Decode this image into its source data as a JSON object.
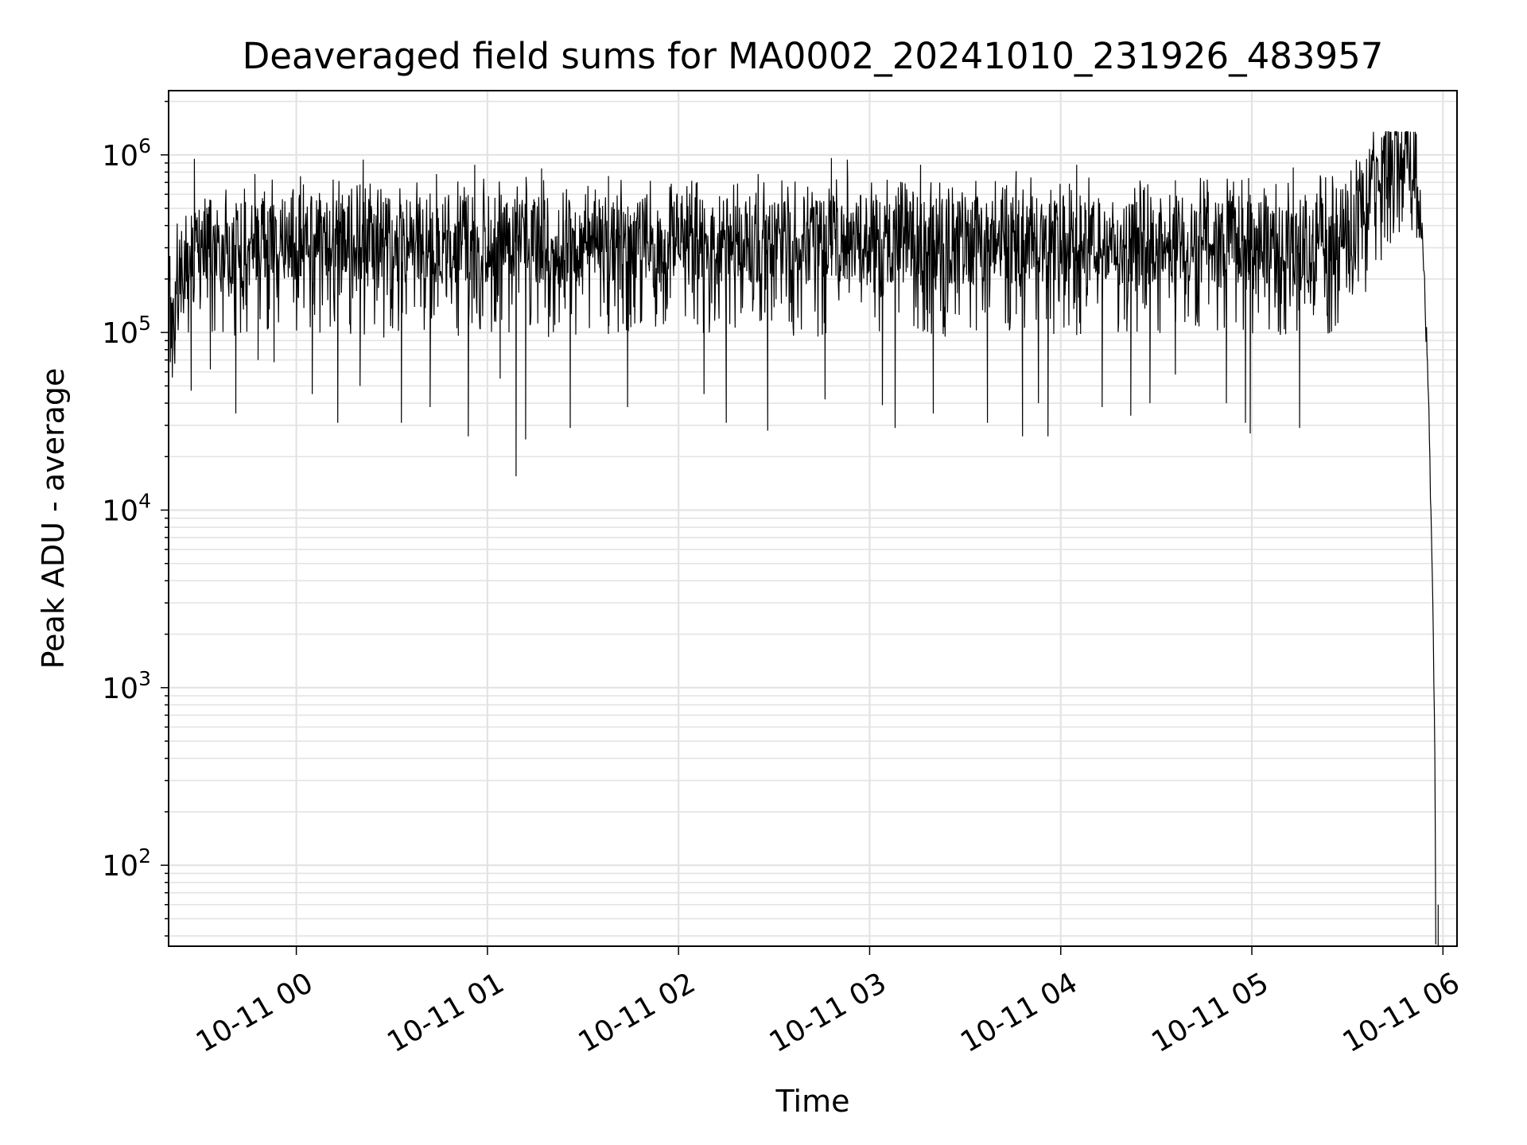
{
  "chart_data": {
    "type": "line",
    "title": "Deaveraged field sums for MA0002_20241010_231926_483957",
    "xlabel": "Time",
    "ylabel": "Peak ADU - average",
    "yscale": "log",
    "xlim": [
      "2024-10-10 23:19:54",
      "2024-10-11 06:04:25"
    ],
    "ylim": [
      35,
      2300000
    ],
    "grid": "on (major and minor, light gray)",
    "line_color": "#000000",
    "x_ticks": [
      {
        "time": "2024-10-11 00:00",
        "label": "10-11 00"
      },
      {
        "time": "2024-10-11 01:00",
        "label": "10-11 01"
      },
      {
        "time": "2024-10-11 02:00",
        "label": "10-11 02"
      },
      {
        "time": "2024-10-11 03:00",
        "label": "10-11 03"
      },
      {
        "time": "2024-10-11 04:00",
        "label": "10-11 04"
      },
      {
        "time": "2024-10-11 05:00",
        "label": "10-11 05"
      },
      {
        "time": "2024-10-11 06:00",
        "label": "10-11 06"
      }
    ],
    "y_ticks": [
      {
        "value": 100,
        "base": "10",
        "exp": "2"
      },
      {
        "value": 1000,
        "base": "10",
        "exp": "3"
      },
      {
        "value": 10000,
        "base": "10",
        "exp": "4"
      },
      {
        "value": 100000,
        "base": "10",
        "exp": "5"
      },
      {
        "value": 1000000,
        "base": "10",
        "exp": "6"
      }
    ],
    "series": [
      {
        "color": "#000000",
        "points": [
          [
            "2024-10-10 23:20:00",
            150000
          ],
          [
            "2024-10-10 23:30:00",
            350000
          ],
          [
            "2024-10-10 23:40:00",
            320000
          ],
          [
            "2024-10-10 23:50:00",
            330000
          ],
          [
            "2024-10-11 00:00:00",
            340000
          ],
          [
            "2024-10-11 00:30:00",
            330000
          ],
          [
            "2024-10-11 01:00:00",
            340000
          ],
          [
            "2024-10-11 01:30:00",
            330000
          ],
          [
            "2024-10-11 02:00:00",
            340000
          ],
          [
            "2024-10-11 02:30:00",
            330000
          ],
          [
            "2024-10-11 03:00:00",
            340000
          ],
          [
            "2024-10-11 03:30:00",
            330000
          ],
          [
            "2024-10-11 04:00:00",
            340000
          ],
          [
            "2024-10-11 04:30:00",
            330000
          ],
          [
            "2024-10-11 05:00:00",
            340000
          ],
          [
            "2024-10-11 05:15:00",
            330000
          ],
          [
            "2024-10-11 05:25:00",
            350000
          ],
          [
            "2024-10-11 05:32:00",
            450000
          ],
          [
            "2024-10-11 05:38:00",
            700000
          ],
          [
            "2024-10-11 05:42:00",
            1000000
          ],
          [
            "2024-10-11 05:45:00",
            1200000
          ],
          [
            "2024-10-11 05:48:00",
            1150000
          ],
          [
            "2024-10-11 05:50:00",
            1000000
          ],
          [
            "2024-10-11 05:52:00",
            700000
          ],
          [
            "2024-10-11 05:53:30",
            350000
          ],
          [
            "2024-10-11 05:54:30",
            150000
          ],
          [
            "2024-10-11 05:55:30",
            40000
          ],
          [
            "2024-10-11 05:56:30",
            6000
          ],
          [
            "2024-10-11 05:57:30",
            400
          ],
          [
            "2024-10-11 05:57:45",
            40
          ]
        ],
        "dips": [
          [
            "2024-10-10 23:22:00",
            90000
          ],
          [
            "2024-10-10 23:27:00",
            47000
          ],
          [
            "2024-10-10 23:33:00",
            62000
          ],
          [
            "2024-10-10 23:41:00",
            35000
          ],
          [
            "2024-10-10 23:48:00",
            70000
          ],
          [
            "2024-10-10 23:53:00",
            68000
          ],
          [
            "2024-10-11 00:05:00",
            45000
          ],
          [
            "2024-10-11 00:13:00",
            31000
          ],
          [
            "2024-10-11 00:20:00",
            50000
          ],
          [
            "2024-10-11 00:33:00",
            31000
          ],
          [
            "2024-10-11 00:42:00",
            38000
          ],
          [
            "2024-10-11 00:54:00",
            26000
          ],
          [
            "2024-10-11 01:04:00",
            55000
          ],
          [
            "2024-10-11 01:09:00",
            15500
          ],
          [
            "2024-10-11 01:12:00",
            25000
          ],
          [
            "2024-10-11 01:26:00",
            29000
          ],
          [
            "2024-10-11 01:44:00",
            38000
          ],
          [
            "2024-10-11 02:08:00",
            45000
          ],
          [
            "2024-10-11 02:15:00",
            31000
          ],
          [
            "2024-10-11 02:28:00",
            28000
          ],
          [
            "2024-10-11 02:46:00",
            42000
          ],
          [
            "2024-10-11 03:04:00",
            39000
          ],
          [
            "2024-10-11 03:08:00",
            29000
          ],
          [
            "2024-10-11 03:20:00",
            35000
          ],
          [
            "2024-10-11 03:37:00",
            31000
          ],
          [
            "2024-10-11 03:48:00",
            26000
          ],
          [
            "2024-10-11 03:53:00",
            40000
          ],
          [
            "2024-10-11 03:56:00",
            26000
          ],
          [
            "2024-10-11 04:13:00",
            38000
          ],
          [
            "2024-10-11 04:22:00",
            34000
          ],
          [
            "2024-10-11 04:28:00",
            40000
          ],
          [
            "2024-10-11 04:36:00",
            58000
          ],
          [
            "2024-10-11 04:52:00",
            40000
          ],
          [
            "2024-10-11 04:58:00",
            31000
          ],
          [
            "2024-10-11 04:59:30",
            27000
          ],
          [
            "2024-10-11 05:15:00",
            29000
          ]
        ],
        "spikes": [
          [
            "2024-10-10 23:28:00",
            950000
          ],
          [
            "2024-10-10 23:47:00",
            780000
          ],
          [
            "2024-10-11 00:21:00",
            940000
          ],
          [
            "2024-10-11 00:44:00",
            780000
          ],
          [
            "2024-10-11 00:56:00",
            880000
          ],
          [
            "2024-10-11 01:17:00",
            840000
          ],
          [
            "2024-10-11 01:38:00",
            760000
          ],
          [
            "2024-10-11 02:25:00",
            780000
          ],
          [
            "2024-10-11 02:48:00",
            960000
          ],
          [
            "2024-10-11 02:53:00",
            940000
          ],
          [
            "2024-10-11 03:16:00",
            880000
          ],
          [
            "2024-10-11 03:46:00",
            810000
          ],
          [
            "2024-10-11 04:05:00",
            880000
          ],
          [
            "2024-10-11 04:36:00",
            720000
          ],
          [
            "2024-10-11 04:59:00",
            740000
          ],
          [
            "2024-10-11 05:13:00",
            850000
          ]
        ]
      }
    ]
  }
}
